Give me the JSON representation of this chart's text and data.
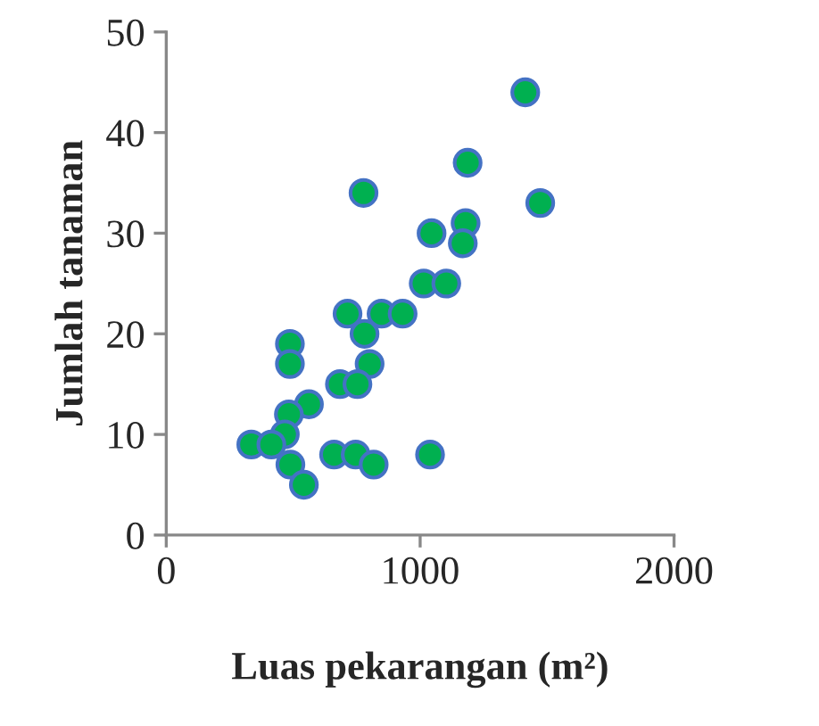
{
  "chart_data": {
    "type": "scatter",
    "xlabel": "Luas pekarangan (m²)",
    "ylabel": "Jumlah tanaman",
    "x": [
      1414,
      1187,
      1473,
      777,
      1045,
      1179,
      1168,
      1014,
      1103,
      714,
      848,
      931,
      781,
      801,
      487,
      487,
      684,
      753,
      562,
      483,
      467,
      335,
      414,
      489,
      542,
      661,
      746,
      817,
      1039
    ],
    "series": [
      {
        "color": "#00b050",
        "values": [
          44,
          37,
          33,
          34,
          30,
          31,
          29,
          25,
          25,
          22,
          22,
          22,
          20,
          17,
          19,
          17,
          15,
          15,
          13,
          12,
          10,
          9,
          9,
          7,
          5,
          8,
          8,
          7,
          8
        ]
      }
    ],
    "xlim": [
      0,
      2000
    ],
    "xticks": [
      0,
      1000,
      2000
    ],
    "ylim": [
      0,
      50
    ],
    "yticks": [
      0,
      10,
      20,
      30,
      40,
      50
    ],
    "grid": false,
    "legend": false,
    "marker": "circle"
  }
}
